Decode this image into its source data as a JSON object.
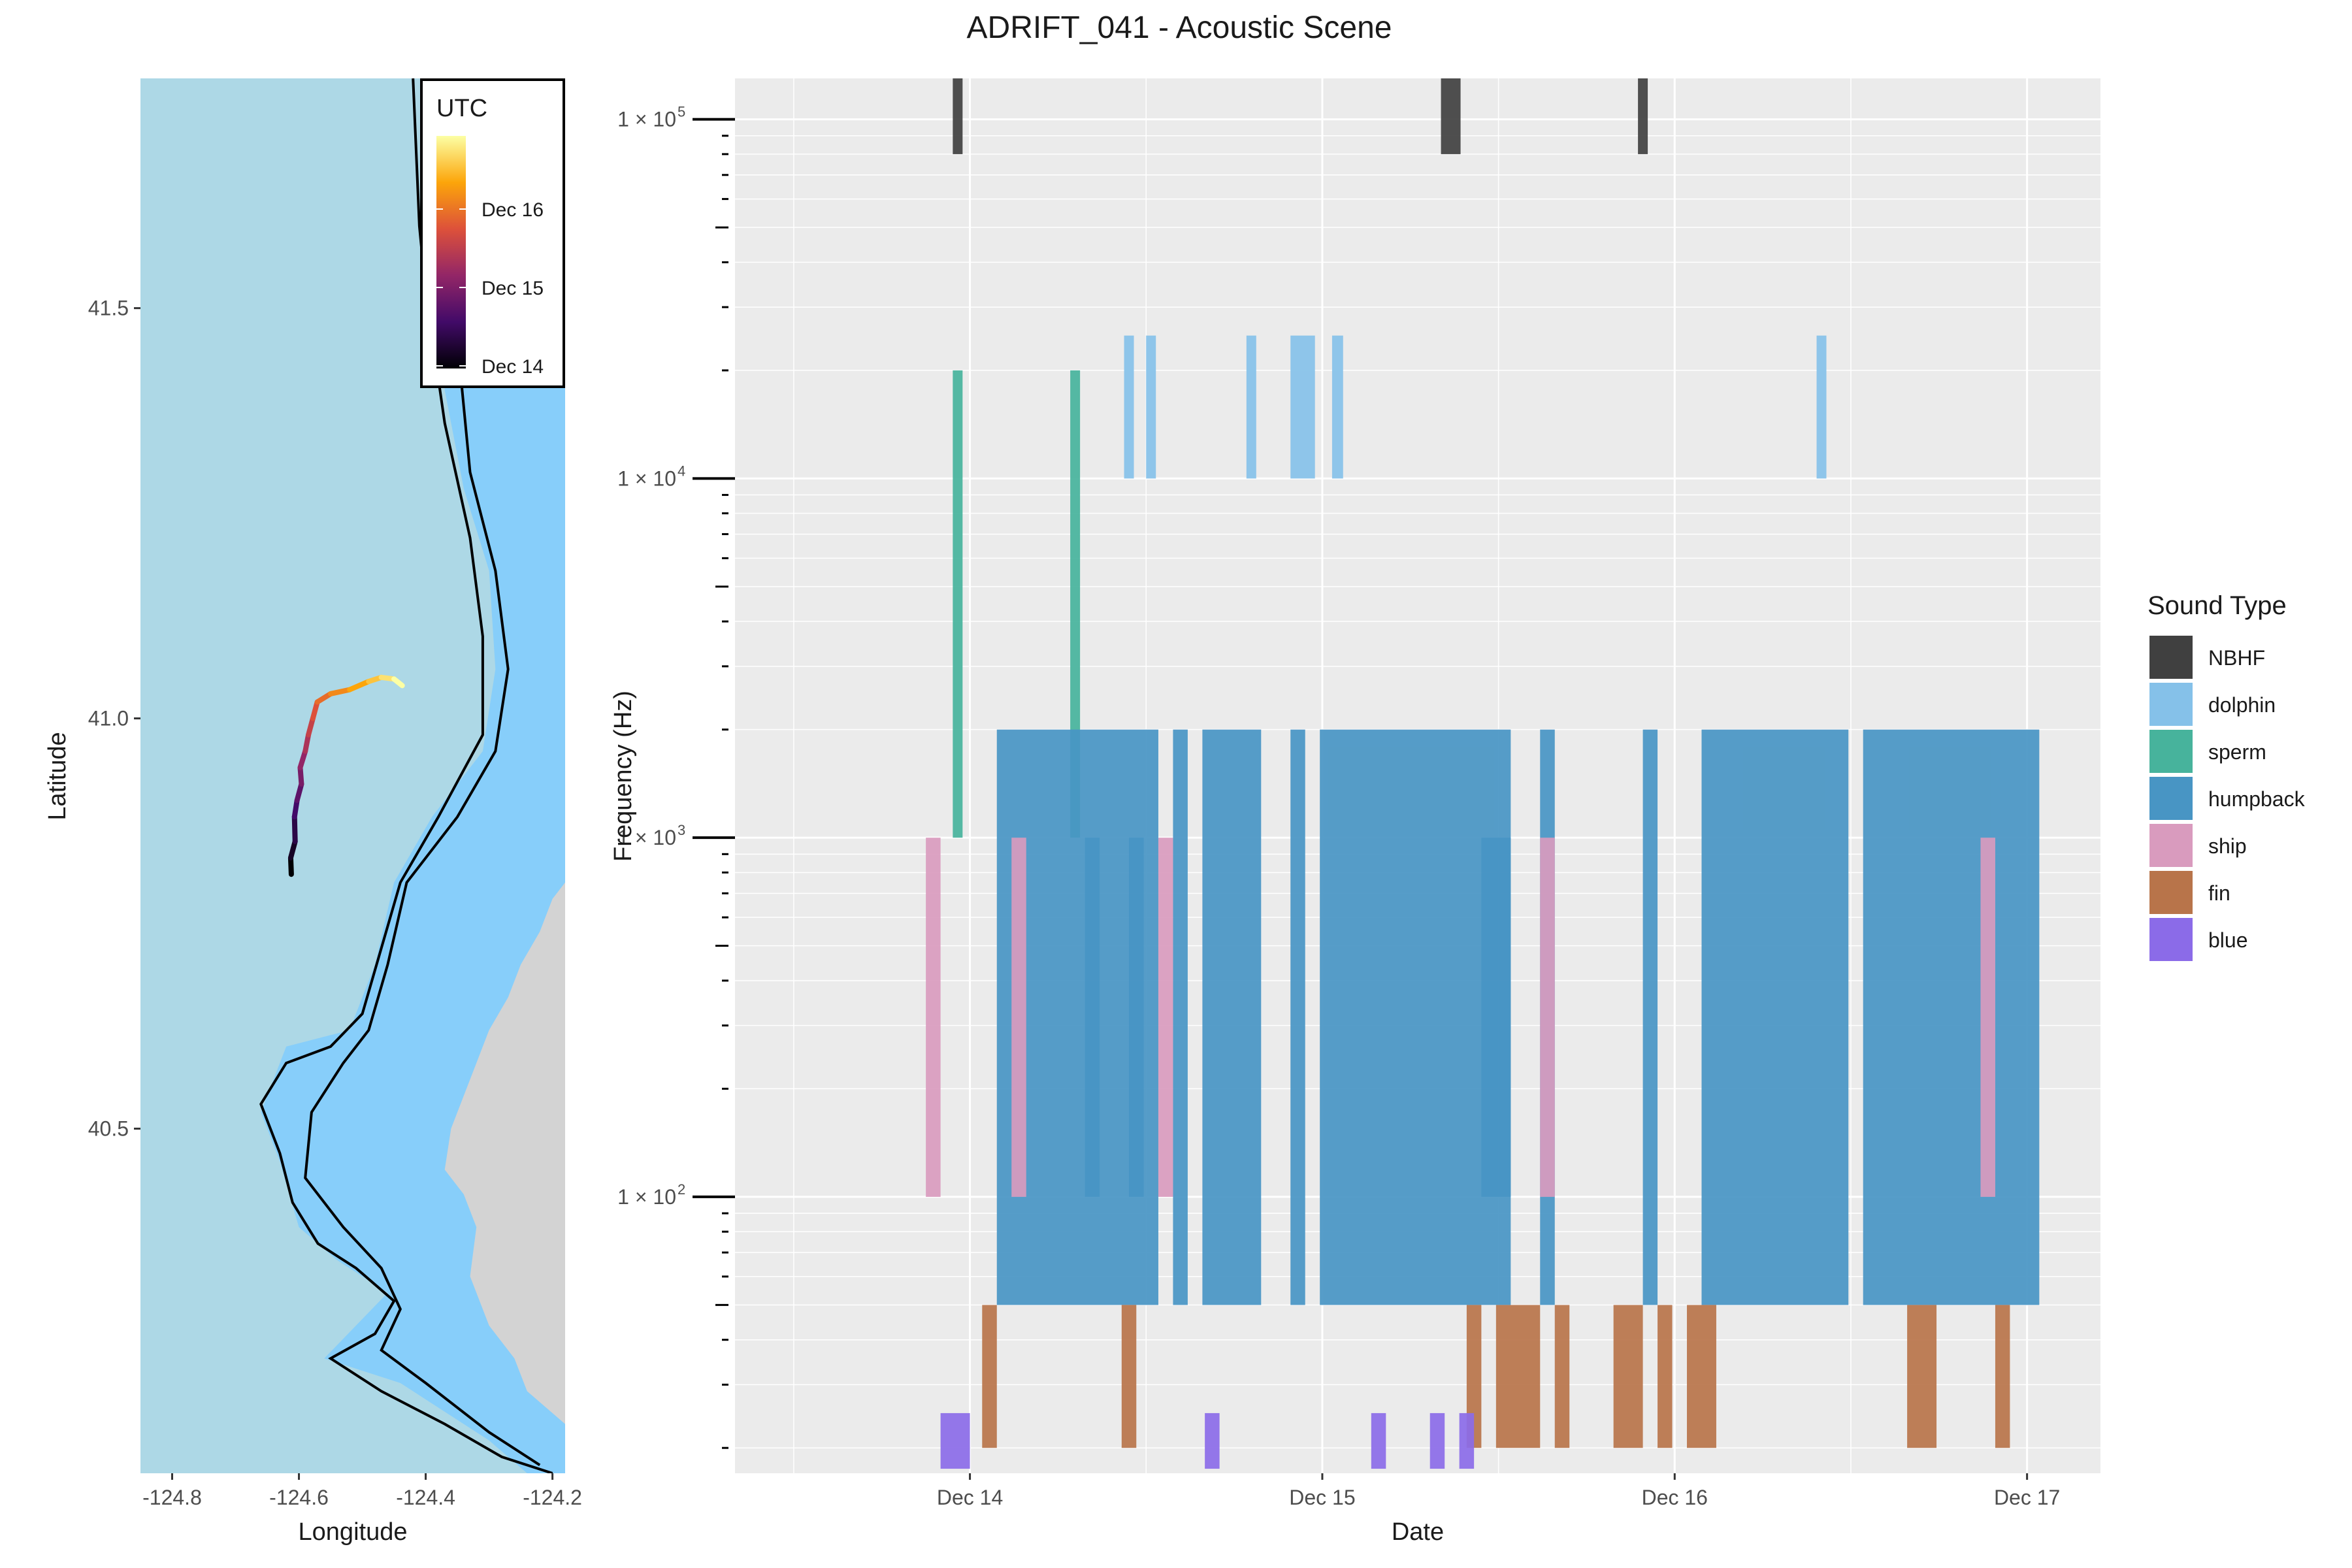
{
  "title": "ADRIFT_041 - Acoustic Scene",
  "map": {
    "xlabel": "Longitude",
    "ylabel": "Latitude",
    "xlim": [
      -124.85,
      -124.18
    ],
    "ylim": [
      40.08,
      41.78
    ],
    "x_ticks": [
      -124.8,
      -124.6,
      -124.4,
      -124.2
    ],
    "x_tick_labels": [
      "-124.8",
      "-124.6",
      "-124.4",
      "-124.2"
    ],
    "y_ticks": [
      40.5,
      41.0,
      41.5
    ],
    "y_tick_labels": [
      "40.5",
      "41.0",
      "41.5"
    ],
    "colors": {
      "ocean": "#ADD8E6",
      "shelf": "#87CEFA",
      "land": "#D3D3D3",
      "contour": "#000000"
    },
    "legend": {
      "title": "UTC",
      "labels": [
        "Dec 16",
        "Dec 15",
        "Dec 14"
      ],
      "gradient": [
        "#000004",
        "#420A68",
        "#932667",
        "#DD513A",
        "#FCA50A",
        "#FCFFA4"
      ]
    },
    "track": [
      [
        -124.612,
        40.81
      ],
      [
        -124.613,
        40.83
      ],
      [
        -124.606,
        40.85
      ],
      [
        -124.607,
        40.88
      ],
      [
        -124.603,
        40.9
      ],
      [
        -124.596,
        40.92
      ],
      [
        -124.598,
        40.94
      ],
      [
        -124.59,
        40.96
      ],
      [
        -124.585,
        40.98
      ],
      [
        -124.578,
        41.0
      ],
      [
        -124.571,
        41.02
      ],
      [
        -124.55,
        41.03
      ],
      [
        -124.52,
        41.035
      ],
      [
        -124.49,
        41.045
      ],
      [
        -124.47,
        41.05
      ],
      [
        -124.45,
        41.048
      ],
      [
        -124.437,
        41.04
      ]
    ]
  },
  "chart_data": {
    "type": "bar",
    "title": "ADRIFT_041 - Acoustic Scene",
    "xlabel": "Date",
    "ylabel": "Frequency (Hz)",
    "y_scale": "log10",
    "xlim": [
      "2022-12-13T08:00",
      "2022-12-17T05:00"
    ],
    "ylim": [
      17,
      130000
    ],
    "x_ticks": [
      "2022-12-14",
      "2022-12-15",
      "2022-12-16",
      "2022-12-17"
    ],
    "x_tick_labels": [
      "Dec 14",
      "Dec 15",
      "Dec 16",
      "Dec 17"
    ],
    "y_ticks": [
      100,
      1000,
      10000,
      100000
    ],
    "y_tick_labels": [
      "1 × 10",
      "1 × 10",
      "1 × 10",
      "1 × 10"
    ],
    "y_tick_exponents": [
      "2",
      "3",
      "4",
      "5"
    ],
    "grid": true,
    "legend": {
      "title": "Sound Type",
      "position": "right"
    },
    "series": [
      {
        "name": "NBHF",
        "color": "#404040",
        "events": [
          {
            "start": "2022-12-13T22:50",
            "end": "2022-12-13T23:30",
            "low": 80000,
            "high": 160000
          },
          {
            "start": "2022-12-15T08:05",
            "end": "2022-12-15T09:25",
            "low": 80000,
            "high": 160000
          },
          {
            "start": "2022-12-15T21:30",
            "end": "2022-12-15T22:10",
            "low": 80000,
            "high": 160000
          }
        ]
      },
      {
        "name": "dolphin",
        "color": "#85C1E9",
        "events": [
          {
            "start": "2022-12-14T10:30",
            "end": "2022-12-14T11:10",
            "low": 10000,
            "high": 25000
          },
          {
            "start": "2022-12-14T12:00",
            "end": "2022-12-14T12:40",
            "low": 10000,
            "high": 25000
          },
          {
            "start": "2022-12-14T18:50",
            "end": "2022-12-14T19:30",
            "low": 10000,
            "high": 25000
          },
          {
            "start": "2022-12-14T21:50",
            "end": "2022-12-14T23:30",
            "low": 10000,
            "high": 25000
          },
          {
            "start": "2022-12-15T00:40",
            "end": "2022-12-15T01:25",
            "low": 10000,
            "high": 25000
          },
          {
            "start": "2022-12-16T09:40",
            "end": "2022-12-16T10:20",
            "low": 10000,
            "high": 25000
          }
        ]
      },
      {
        "name": "sperm",
        "color": "#47B39C",
        "events": [
          {
            "start": "2022-12-13T22:50",
            "end": "2022-12-13T23:30",
            "low": 1000,
            "high": 20000
          },
          {
            "start": "2022-12-14T06:50",
            "end": "2022-12-14T07:30",
            "low": 1000,
            "high": 20000
          }
        ]
      },
      {
        "name": "humpback",
        "color": "#4895C4",
        "events": [
          {
            "start": "2022-12-14T01:50",
            "end": "2022-12-14T12:50",
            "low": 50,
            "high": 2000
          },
          {
            "start": "2022-12-14T13:50",
            "end": "2022-12-14T14:50",
            "low": 50,
            "high": 2000
          },
          {
            "start": "2022-12-14T15:50",
            "end": "2022-12-14T19:50",
            "low": 50,
            "high": 2000
          },
          {
            "start": "2022-12-14T21:50",
            "end": "2022-12-14T22:50",
            "low": 50,
            "high": 2000
          },
          {
            "start": "2022-12-14T23:50",
            "end": "2022-12-15T12:50",
            "low": 50,
            "high": 2000
          },
          {
            "start": "2022-12-15T14:50",
            "end": "2022-12-15T15:50",
            "low": 50,
            "high": 2000
          },
          {
            "start": "2022-12-15T21:50",
            "end": "2022-12-15T22:50",
            "low": 50,
            "high": 2000
          },
          {
            "start": "2022-12-16T01:50",
            "end": "2022-12-16T11:50",
            "low": 50,
            "high": 2000
          },
          {
            "start": "2022-12-16T12:50",
            "end": "2022-12-17T00:50",
            "low": 50,
            "high": 2000
          },
          {
            "start": "2022-12-14T07:50",
            "end": "2022-12-14T08:50",
            "low": 100,
            "high": 1000
          },
          {
            "start": "2022-12-14T10:50",
            "end": "2022-12-14T11:50",
            "low": 100,
            "high": 1000
          },
          {
            "start": "2022-12-15T10:50",
            "end": "2022-12-15T12:50",
            "low": 100,
            "high": 1000
          }
        ]
      },
      {
        "name": "ship",
        "color": "#D99BBE",
        "events": [
          {
            "start": "2022-12-13T21:00",
            "end": "2022-12-13T22:00",
            "low": 100,
            "high": 1000
          },
          {
            "start": "2022-12-14T02:50",
            "end": "2022-12-14T03:50",
            "low": 100,
            "high": 1000
          },
          {
            "start": "2022-12-14T12:50",
            "end": "2022-12-14T13:50",
            "low": 100,
            "high": 1000
          },
          {
            "start": "2022-12-15T14:50",
            "end": "2022-12-15T15:50",
            "low": 100,
            "high": 1000
          },
          {
            "start": "2022-12-16T20:50",
            "end": "2022-12-16T21:50",
            "low": 100,
            "high": 1000
          }
        ]
      },
      {
        "name": "fin",
        "color": "#B8744A",
        "events": [
          {
            "start": "2022-12-14T00:50",
            "end": "2022-12-14T01:50",
            "low": 20,
            "high": 50
          },
          {
            "start": "2022-12-14T10:20",
            "end": "2022-12-14T11:20",
            "low": 20,
            "high": 50
          },
          {
            "start": "2022-12-15T09:50",
            "end": "2022-12-15T10:50",
            "low": 20,
            "high": 50
          },
          {
            "start": "2022-12-15T11:50",
            "end": "2022-12-15T14:50",
            "low": 20,
            "high": 50
          },
          {
            "start": "2022-12-15T15:50",
            "end": "2022-12-15T16:50",
            "low": 20,
            "high": 50
          },
          {
            "start": "2022-12-15T19:50",
            "end": "2022-12-15T21:50",
            "low": 20,
            "high": 50
          },
          {
            "start": "2022-12-15T22:50",
            "end": "2022-12-15T23:50",
            "low": 20,
            "high": 50
          },
          {
            "start": "2022-12-16T00:50",
            "end": "2022-12-16T02:50",
            "low": 20,
            "high": 50
          },
          {
            "start": "2022-12-16T15:50",
            "end": "2022-12-16T17:50",
            "low": 20,
            "high": 50
          },
          {
            "start": "2022-12-16T21:50",
            "end": "2022-12-16T22:50",
            "low": 20,
            "high": 50
          }
        ]
      },
      {
        "name": "blue",
        "color": "#8B6BE8",
        "events": [
          {
            "start": "2022-12-13T22:00",
            "end": "2022-12-13T24:00",
            "low": 17.5,
            "high": 25
          },
          {
            "start": "2022-12-14T16:00",
            "end": "2022-12-14T17:00",
            "low": 17.5,
            "high": 25
          },
          {
            "start": "2022-12-15T03:20",
            "end": "2022-12-15T04:20",
            "low": 17.5,
            "high": 25
          },
          {
            "start": "2022-12-15T07:20",
            "end": "2022-12-15T08:20",
            "low": 17.5,
            "high": 25
          },
          {
            "start": "2022-12-15T09:20",
            "end": "2022-12-15T10:20",
            "low": 17.5,
            "high": 25
          }
        ]
      }
    ]
  }
}
